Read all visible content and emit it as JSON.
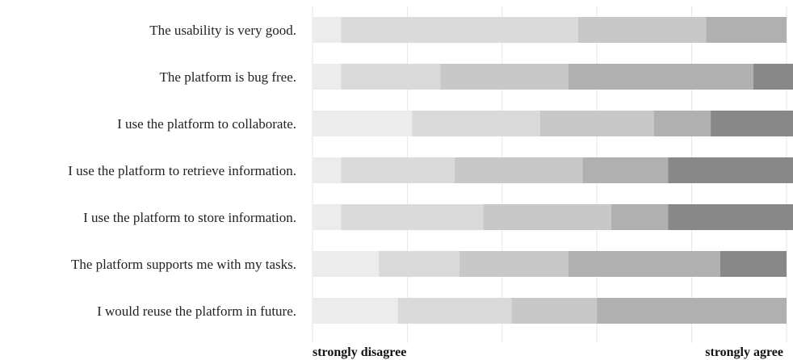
{
  "chart_data": {
    "type": "bar",
    "stacked": true,
    "orientation": "horizontal",
    "categories": [
      "The usability is very good.",
      "The platform is bug free.",
      "I use the platform to collaborate.",
      "I use the platform to retrieve information.",
      "I use the platform to store information.",
      "The platform supports me with my tasks.",
      "I would reuse the platform in future."
    ],
    "series": [
      {
        "values": [
          6,
          6,
          21,
          6,
          6,
          14,
          18
        ],
        "color": "#ececec"
      },
      {
        "values": [
          50,
          21,
          27,
          24,
          30,
          17,
          24
        ],
        "color": "#dadada"
      },
      {
        "values": [
          27,
          27,
          24,
          27,
          27,
          23,
          18
        ],
        "color": "#c8c8c8"
      },
      {
        "values": [
          17,
          39,
          12,
          18,
          12,
          32,
          40
        ],
        "color": "#b0b0b0"
      },
      {
        "values": [
          0,
          9,
          18,
          27,
          27,
          14,
          0
        ],
        "color": "#888888"
      }
    ],
    "xlim": [
      0,
      100
    ],
    "grid": true,
    "axis_end_labels": {
      "left": "strongly disagree",
      "right": "strongly agree"
    }
  }
}
